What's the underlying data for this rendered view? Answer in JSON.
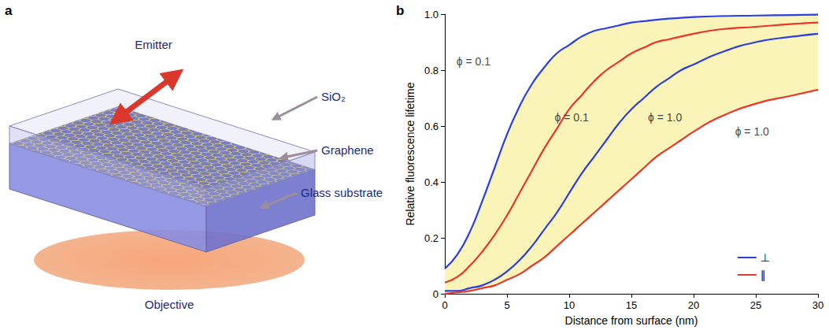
{
  "figure": {
    "panels": [
      "a",
      "b"
    ]
  },
  "diagram": {
    "emitter": "Emitter",
    "layers": [
      "SiO₂",
      "Graphene",
      "Glass substrate"
    ],
    "objective": "Objective"
  },
  "chart_data": {
    "type": "line",
    "x_label": "Distance from surface (nm)",
    "y_label": "Relative fluorescence lifetime",
    "x": [
      0,
      1,
      2,
      3,
      4,
      5,
      6,
      7,
      8,
      9,
      10,
      11,
      12,
      13,
      14,
      15,
      16,
      17,
      18,
      19,
      20,
      22,
      25,
      28,
      30
    ],
    "series": [
      {
        "name": "⊥",
        "color": "#2b3fe0",
        "values": [
          0.09,
          0.14,
          0.22,
          0.33,
          0.45,
          0.57,
          0.67,
          0.75,
          0.81,
          0.86,
          0.89,
          0.92,
          0.94,
          0.95,
          0.96,
          0.97,
          0.975,
          0.98,
          0.984,
          0.987,
          0.99,
          0.993,
          0.995,
          0.997,
          0.998
        ]
      },
      {
        "name": "∥",
        "color": "#e8362a",
        "values": [
          0.04,
          0.06,
          0.1,
          0.15,
          0.21,
          0.28,
          0.36,
          0.44,
          0.52,
          0.59,
          0.66,
          0.71,
          0.76,
          0.8,
          0.83,
          0.86,
          0.88,
          0.9,
          0.91,
          0.92,
          0.93,
          0.945,
          0.955,
          0.965,
          0.97
        ]
      },
      {
        "name": "⊥",
        "color": "#2b3fe0",
        "values": [
          0.01,
          0.01,
          0.02,
          0.03,
          0.05,
          0.08,
          0.12,
          0.17,
          0.23,
          0.29,
          0.36,
          0.43,
          0.49,
          0.55,
          0.61,
          0.66,
          0.7,
          0.74,
          0.77,
          0.8,
          0.82,
          0.86,
          0.9,
          0.92,
          0.93
        ]
      },
      {
        "name": "∥",
        "color": "#e8362a",
        "values": [
          0,
          0.005,
          0.01,
          0.02,
          0.03,
          0.05,
          0.07,
          0.1,
          0.13,
          0.17,
          0.21,
          0.25,
          0.29,
          0.33,
          0.37,
          0.41,
          0.45,
          0.49,
          0.52,
          0.55,
          0.58,
          0.63,
          0.68,
          0.71,
          0.73
        ]
      }
    ],
    "annotations": [
      {
        "text": "ϕ = 0.1",
        "x": 2.3,
        "y": 0.83
      },
      {
        "text": "ϕ = 0.1",
        "x": 10.2,
        "y": 0.63
      },
      {
        "text": "ϕ = 1.0",
        "x": 17.7,
        "y": 0.63
      },
      {
        "text": "ϕ = 1.0",
        "x": 24.7,
        "y": 0.58
      }
    ],
    "xlim": [
      0,
      30
    ],
    "xticks": [
      0,
      5,
      10,
      15,
      20,
      25,
      30
    ],
    "ylim": [
      0,
      1
    ],
    "yticks": [
      0,
      0.2,
      0.4,
      0.6,
      0.8,
      {
        "value": 1,
        "label": "1.0"
      }
    ],
    "grid": false,
    "legend": "lower right"
  }
}
